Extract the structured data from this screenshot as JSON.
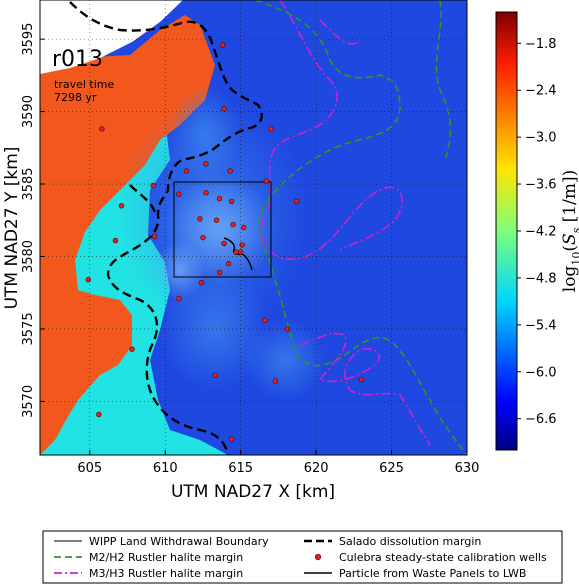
{
  "chart_data": {
    "type": "heatmap",
    "annotation": {
      "run": "r013",
      "travel_time_label": "travel time",
      "travel_time_value": "7298 yr"
    },
    "xlabel": "UTM NAD27 X [km]",
    "ylabel": "UTM NAD27 Y [km]",
    "xlim": [
      601.7,
      630
    ],
    "ylim": [
      3566.3,
      3597.7
    ],
    "xticks": [
      605,
      610,
      615,
      620,
      625,
      630
    ],
    "yticks": [
      3570,
      3575,
      3580,
      3585,
      3590,
      3595
    ],
    "grid": true,
    "colorbar": {
      "label": "log10(Ss [1/m])",
      "range": [
        -7.0,
        -1.4
      ],
      "ticks": [
        -1.8,
        -2.4,
        -3.0,
        -3.6,
        -4.2,
        -4.8,
        -5.4,
        -6.0,
        -6.6
      ],
      "tick_labels": [
        "−1.8",
        "−2.4",
        "−3.0",
        "−3.6",
        "−4.2",
        "−4.8",
        "−5.4",
        "−6.0",
        "−6.6"
      ]
    },
    "wells": [
      [
        613.8,
        3594.6
      ],
      [
        613.9,
        3590.2
      ],
      [
        617.0,
        3588.8
      ],
      [
        605.8,
        3588.8
      ],
      [
        611.4,
        3585.9
      ],
      [
        612.7,
        3586.4
      ],
      [
        614.3,
        3585.9
      ],
      [
        609.2,
        3584.9
      ],
      [
        610.9,
        3584.3
      ],
      [
        612.7,
        3584.4
      ],
      [
        613.6,
        3584.0
      ],
      [
        614.4,
        3583.8
      ],
      [
        616.7,
        3585.2
      ],
      [
        618.7,
        3583.8
      ],
      [
        607.1,
        3583.5
      ],
      [
        613.4,
        3582.5
      ],
      [
        614.5,
        3582.2
      ],
      [
        612.3,
        3582.6
      ],
      [
        615.2,
        3582.0
      ],
      [
        612.5,
        3581.3
      ],
      [
        613.9,
        3580.9
      ],
      [
        614.7,
        3580.3
      ],
      [
        615.1,
        3580.8
      ],
      [
        606.7,
        3581.1
      ],
      [
        609.3,
        3581.4
      ],
      [
        614.2,
        3579.5
      ],
      [
        612.4,
        3578.2
      ],
      [
        613.6,
        3578.9
      ],
      [
        615.0,
        3580.3
      ],
      [
        604.9,
        3578.4
      ],
      [
        610.9,
        3577.1
      ],
      [
        616.6,
        3575.6
      ],
      [
        607.8,
        3573.6
      ],
      [
        613.3,
        3571.8
      ],
      [
        623.0,
        3571.5
      ],
      [
        618.1,
        3575.0
      ],
      [
        617.3,
        3571.4
      ],
      [
        605.6,
        3569.1
      ],
      [
        614.4,
        3567.4
      ]
    ],
    "layers": [
      {
        "name": "blue background",
        "color": "#1f48e0"
      },
      {
        "name": "orange region",
        "color": "#f2581e"
      },
      {
        "name": "cyan region",
        "color": "#22e3e3"
      },
      {
        "name": "white no-data",
        "color": "#ffffff"
      }
    ],
    "legend": [
      {
        "label": "WIPP Land Withdrawal Boundary",
        "color": "#000000",
        "style": "solid-thin"
      },
      {
        "label": "Salado dissolution margin",
        "color": "#000000",
        "style": "dashed-thick"
      },
      {
        "label": "M2/H2 Rustler halite margin",
        "color": "#2a9a22",
        "style": "dashed"
      },
      {
        "label": "Culebra steady-state calibration wells",
        "color": "#dd2222",
        "style": "dot"
      },
      {
        "label": "M3/H3 Rustler halite margin",
        "color": "#cc22cc",
        "style": "dashdot"
      },
      {
        "label": "Particle from Waste Panels to LWB",
        "color": "#000000",
        "style": "solid"
      }
    ],
    "legend_position": "bottom"
  }
}
